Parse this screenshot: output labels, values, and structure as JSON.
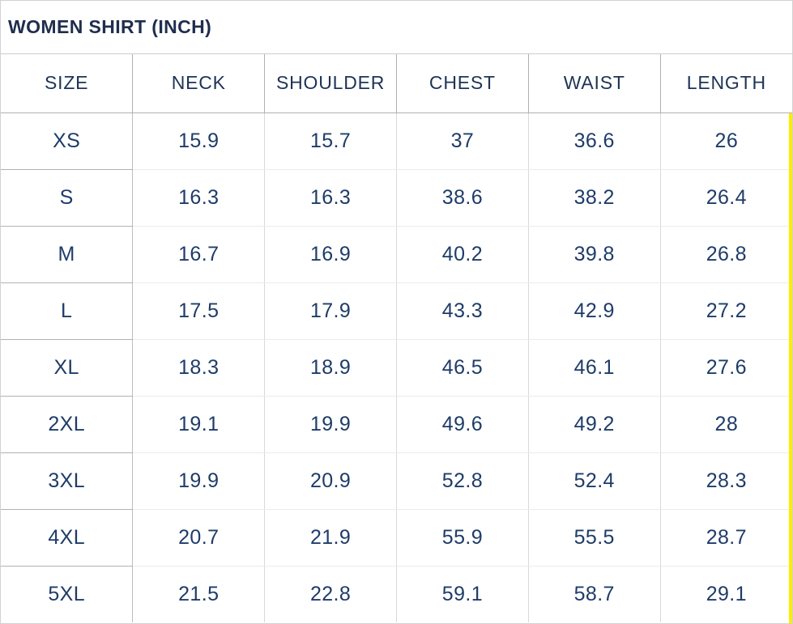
{
  "title": "WOMEN SHIRT (INCH)",
  "chart_data": {
    "type": "table",
    "title": "WOMEN SHIRT (INCH)",
    "columns": [
      "SIZE",
      "NECK",
      "SHOULDER",
      "CHEST",
      "WAIST",
      "LENGTH"
    ],
    "rows": [
      [
        "XS",
        "15.9",
        "15.7",
        "37",
        "36.6",
        "26"
      ],
      [
        "S",
        "16.3",
        "16.3",
        "38.6",
        "38.2",
        "26.4"
      ],
      [
        "M",
        "16.7",
        "16.9",
        "40.2",
        "39.8",
        "26.8"
      ],
      [
        "L",
        "17.5",
        "17.9",
        "43.3",
        "42.9",
        "27.2"
      ],
      [
        "XL",
        "18.3",
        "18.9",
        "46.5",
        "46.1",
        "27.6"
      ],
      [
        "2XL",
        "19.1",
        "19.9",
        "49.6",
        "49.2",
        "28"
      ],
      [
        "3XL",
        "19.9",
        "20.9",
        "52.8",
        "52.4",
        "28.3"
      ],
      [
        "4XL",
        "20.7",
        "21.9",
        "55.9",
        "55.5",
        "28.7"
      ],
      [
        "5XL",
        "21.5",
        "22.8",
        "59.1",
        "58.7",
        "29.1"
      ]
    ]
  },
  "colors": {
    "title_text": "#1f2e4e",
    "header_text": "#1e3356",
    "cell_text": "#1e3c69",
    "header_border": "#b0b0b0",
    "row_border": "#ebebeb",
    "column_border": "#d9d9d9",
    "outer_border": "#d2d2d2",
    "highlight_bar": "#ffec00"
  }
}
